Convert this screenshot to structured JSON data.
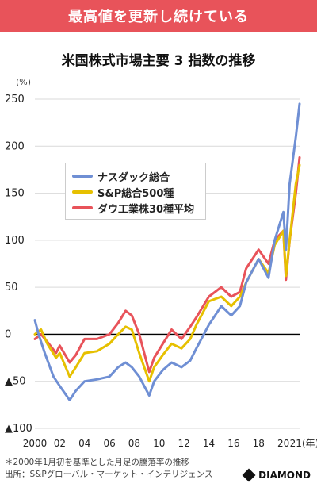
{
  "banner": {
    "text": "最高値を更新し続けている"
  },
  "chart_data": {
    "type": "line",
    "title": "米国株式市場主要 3 指数の推移",
    "ylabel": "(%)",
    "xlabel_unit": "(年)",
    "ylim": [
      -100,
      250
    ],
    "yticks": [
      250,
      200,
      150,
      100,
      50,
      0,
      -50,
      -100
    ],
    "ytick_labels": [
      "250",
      "200",
      "150",
      "100",
      "50",
      "0",
      "▲50",
      "▲100"
    ],
    "xlim": [
      2000,
      2021.3
    ],
    "xticks": [
      2000,
      2002,
      2004,
      2006,
      2008,
      2010,
      2012,
      2014,
      2016,
      2018,
      2020,
      2021
    ],
    "xtick_labels": [
      "2000",
      "02",
      "04",
      "06",
      "08",
      "10",
      "12",
      "14",
      "16",
      "18",
      "20",
      "21"
    ],
    "grid": "horizontal",
    "legend_position": "upper-left",
    "series": [
      {
        "name": "ダウ工業株30種平均",
        "color": "#e8535a",
        "x": [
          2000,
          2000.5,
          2001,
          2001.7,
          2002,
          2002.8,
          2003.3,
          2004,
          2005,
          2006,
          2006.7,
          2007.3,
          2007.8,
          2008.4,
          2009.2,
          2009.6,
          2010.3,
          2011,
          2011.8,
          2012.5,
          2013,
          2014,
          2015,
          2015.8,
          2016.5,
          2017,
          2018,
          2018.8,
          2019.3,
          2020,
          2020.2,
          2020.5,
          2021,
          2021.3
        ],
        "y": [
          -5,
          0,
          -8,
          -20,
          -12,
          -30,
          -22,
          -5,
          -5,
          0,
          12,
          25,
          20,
          0,
          -40,
          -25,
          -10,
          5,
          -5,
          8,
          18,
          40,
          50,
          40,
          45,
          70,
          90,
          75,
          100,
          110,
          58,
          100,
          150,
          188
        ]
      },
      {
        "name": "S&P総合500種",
        "color": "#e6c000",
        "x": [
          2000,
          2000.5,
          2001,
          2001.7,
          2002,
          2002.8,
          2003.3,
          2004,
          2005,
          2006,
          2006.7,
          2007.3,
          2007.8,
          2008.4,
          2009.2,
          2009.6,
          2010.3,
          2011,
          2011.8,
          2012.5,
          2013,
          2014,
          2015,
          2015.8,
          2016.5,
          2017,
          2018,
          2018.8,
          2019.3,
          2020,
          2020.2,
          2020.5,
          2021,
          2021.3
        ],
        "y": [
          0,
          5,
          -10,
          -25,
          -20,
          -45,
          -35,
          -20,
          -18,
          -10,
          0,
          8,
          5,
          -20,
          -50,
          -35,
          -22,
          -10,
          -15,
          -5,
          10,
          35,
          40,
          30,
          40,
          55,
          80,
          65,
          95,
          110,
          62,
          100,
          160,
          180
        ]
      },
      {
        "name": "ナスダック総合",
        "color": "#6f8fd4",
        "x": [
          2000,
          2000.3,
          2000.8,
          2001.5,
          2002,
          2002.8,
          2003.3,
          2004,
          2005,
          2006,
          2006.7,
          2007.3,
          2007.8,
          2008.4,
          2009.2,
          2009.6,
          2010.3,
          2011,
          2011.8,
          2012.5,
          2013,
          2014,
          2015,
          2015.8,
          2016.5,
          2017,
          2018,
          2018.8,
          2019.3,
          2020,
          2020.2,
          2020.5,
          2021,
          2021.3
        ],
        "y": [
          15,
          0,
          -20,
          -45,
          -55,
          -70,
          -60,
          -50,
          -48,
          -45,
          -35,
          -30,
          -35,
          -45,
          -65,
          -50,
          -38,
          -30,
          -35,
          -28,
          -15,
          10,
          30,
          20,
          30,
          55,
          80,
          60,
          100,
          130,
          90,
          160,
          210,
          245
        ]
      }
    ]
  },
  "footnote": {
    "line1": "＊2000年1月初を基準とした月足の騰落率の推移",
    "line2": "出所：S&Pグローバル・マーケット・インテリジェンス"
  },
  "brand": {
    "name": "DIAMOND"
  }
}
